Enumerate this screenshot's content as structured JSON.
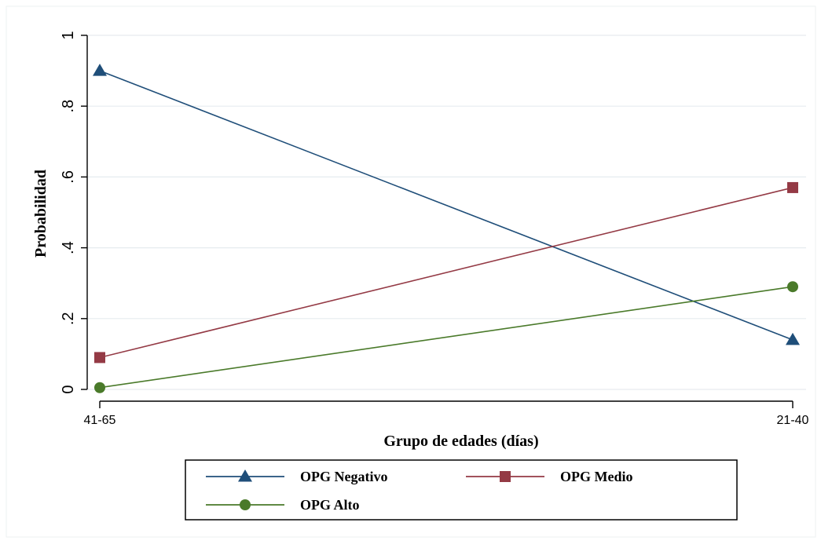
{
  "chart_data": {
    "type": "line",
    "title": "",
    "xlabel": "Grupo de edades (días)",
    "ylabel": "Probabilidad",
    "categories": [
      "41-65",
      "21-40"
    ],
    "ylim": [
      0,
      1
    ],
    "yticks": [
      0,
      0.2,
      0.4,
      0.6,
      0.8,
      1
    ],
    "ytick_labels": [
      "0",
      ".2",
      ".4",
      ".6",
      ".8",
      "1"
    ],
    "grid": true,
    "legend_position": "bottom",
    "series": [
      {
        "name": "OPG Negativo",
        "values": [
          0.9,
          0.14
        ],
        "color": "#1f4e79",
        "marker": "triangle"
      },
      {
        "name": "OPG Medio",
        "values": [
          0.09,
          0.57
        ],
        "color": "#943a45",
        "marker": "square"
      },
      {
        "name": "OPG Alto",
        "values": [
          0.005,
          0.29
        ],
        "color": "#4a7a2a",
        "marker": "circle"
      }
    ]
  }
}
